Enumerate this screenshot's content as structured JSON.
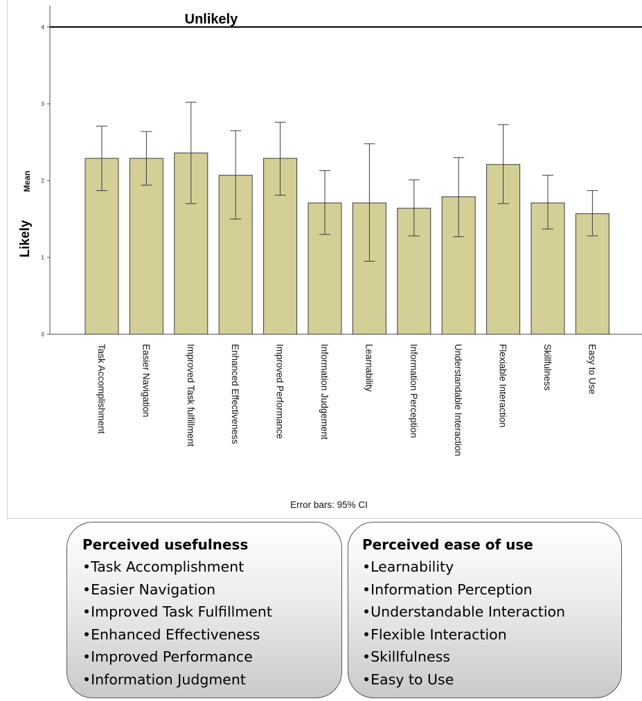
{
  "chart_data": {
    "type": "bar",
    "categories": [
      "Task Accomplishment",
      "Easier Navigation",
      "Improved Task fulfillment",
      "Enhanced Effectiveness",
      "Improved Performance",
      "Information Judgement",
      "Learnability",
      "Information Perception",
      "Understandable Interaction",
      "Flexiable Interaction",
      "Skillfulness",
      "Easy to Use"
    ],
    "values": [
      2.29,
      2.29,
      2.36,
      2.07,
      2.29,
      1.71,
      1.71,
      1.64,
      1.79,
      2.21,
      1.71,
      1.57
    ],
    "error_low": [
      1.87,
      1.94,
      1.7,
      1.5,
      1.81,
      1.3,
      0.95,
      1.28,
      1.27,
      1.7,
      1.37,
      1.28
    ],
    "error_high": [
      2.71,
      2.64,
      3.02,
      2.65,
      2.76,
      2.13,
      2.48,
      2.01,
      2.3,
      2.73,
      2.07,
      1.87
    ],
    "ylabel": "Mean",
    "ylim": [
      0,
      4
    ],
    "yticks": [
      "0",
      "1",
      "2",
      "3",
      "4"
    ],
    "reference_line": {
      "value": 4,
      "label": "Unlikely"
    },
    "low_end_label": "Likely",
    "note": "Error bars: 95% CI",
    "colors": {
      "bar_fill": "#d4cf97",
      "bar_stroke": "#3a3a3a"
    }
  },
  "groups": [
    {
      "title": "Perceived usefulness",
      "items": [
        "•Task Accomplishment",
        "•Easier Navigation",
        "•Improved Task Fulfillment",
        "•Enhanced Effectiveness",
        "•Improved Performance",
        "•Information Judgment"
      ]
    },
    {
      "title": "Perceived ease of use",
      "items": [
        "•Learnability",
        "•Information Perception",
        "•Understandable Interaction",
        "•Flexible Interaction",
        "•Skillfulness",
        "•Easy to Use"
      ]
    }
  ]
}
